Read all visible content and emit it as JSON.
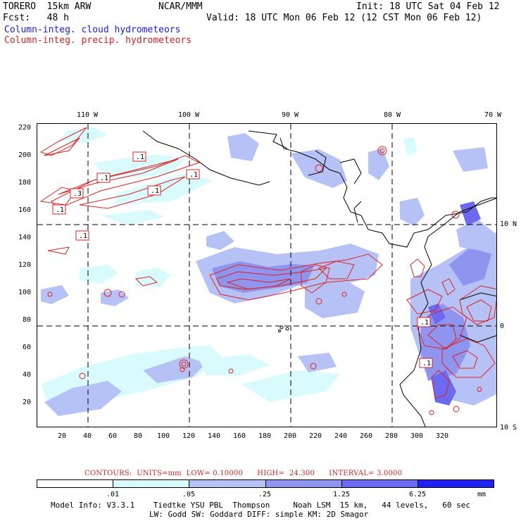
{
  "header": {
    "model": "TORERO  15km ARW",
    "org": "NCAR/MMM",
    "init": "Init: 18 UTC Sat 04 Feb 12",
    "fcst": "Fcst:   48 h",
    "valid": "Valid: 18 UTC Mon 06 Feb 12 (12 CST Mon 06 Feb 12)",
    "field_cloud": "Column-integ. cloud hydrometeors",
    "field_precip": "Column-integ. precip. hydrometeors"
  },
  "axes": {
    "lon_labels": [
      "110 W",
      "100 W",
      "90 W",
      "80 W",
      "70 W"
    ],
    "lat_labels": [
      "10 N",
      "0",
      "10 S"
    ],
    "y_ticks": [
      "220",
      "200",
      "180",
      "160",
      "140",
      "120",
      "100",
      "80",
      "60",
      "40",
      "20"
    ],
    "x_ticks": [
      "20",
      "40",
      "60",
      "80",
      "100",
      "120",
      "140",
      "160",
      "180",
      "200",
      "220",
      "240",
      "260",
      "280",
      "300",
      "320"
    ]
  },
  "map_labels": [
    ".1",
    ".1",
    ".1",
    ".3",
    ".1",
    ".1",
    ".1",
    ".1",
    ".1"
  ],
  "contours": {
    "label": "CONTOURS:",
    "units": "UNITS=mm",
    "low": "LOW= 0.10000",
    "high": "HIGH=  24.300",
    "interval": "INTERVAL= 3.0000"
  },
  "legend": {
    "colors": [
      "#ffffff",
      "#d9fbfd",
      "#b6c2f6",
      "#8f94ef",
      "#6b6af0",
      "#2222ee"
    ],
    "tick_labels": [
      ".01",
      ".05",
      ".25",
      "1.25",
      "6.25"
    ],
    "unit": "mm"
  },
  "footer": {
    "line1": "Model Info: V3.3.1    Tiedtke YSU PBL  Thompson     Noah LSM  15 km,   44 levels,   60 sec",
    "line2": "LW: Godd SW: Goddard DIFF: simple KM: 2D Smagor"
  }
}
